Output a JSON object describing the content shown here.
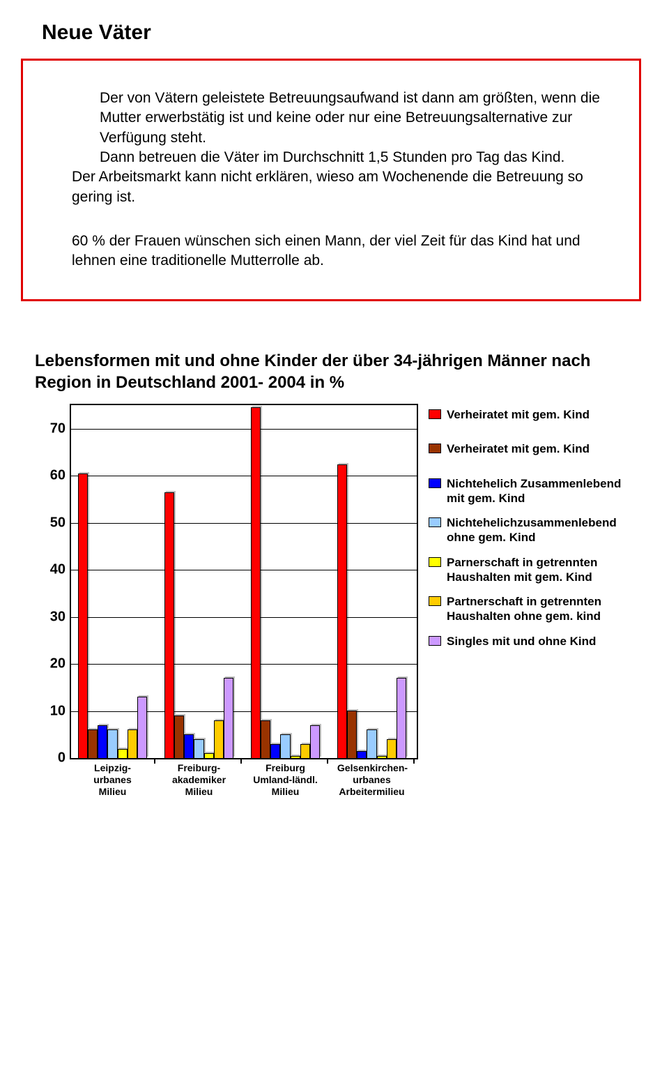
{
  "title": "Neue Väter",
  "paragraphs": [
    "Der von Vätern geleistete Betreuungsaufwand ist dann am größten, wenn die Mutter erwerbstätig ist und keine oder nur eine Betreuungsalternative zur Verfügung steht.\nDann betreuen die Väter im Durchschnitt 1,5 Stunden pro Tag das Kind.",
    "Der Arbeitsmarkt kann nicht erklären, wieso am Wochenende die Betreuung so gering ist.",
    "60 % der Frauen wünschen sich einen Mann, der viel Zeit für das Kind hat und lehnen eine traditionelle Mutterrolle ab."
  ],
  "chart": {
    "title": "Lebensformen mit und ohne Kinder der über 34-jährigen Männer nach Region in Deutschland 2001- 2004 in %",
    "type": "bar",
    "ymin": 0,
    "ymax": 75,
    "yticks": [
      0,
      10,
      20,
      30,
      40,
      50,
      60,
      70
    ],
    "categories": [
      "Leipzig-urbanes\nMilieu",
      "Freiburg-\nakademiker\nMilieu",
      "Freiburg\nUmland-ländl.\nMilieu",
      "Gelsenkirchen-\nurbanes\nArbeitermilieu"
    ],
    "series": [
      {
        "label": "Verheiratet mit gem. Kind",
        "color": "#ff0000"
      },
      {
        "label": "Verheiratet mit gem. Kind",
        "color": "#993300"
      },
      {
        "label": "Nichtehelich Zusammenlebend mit gem. Kind",
        "color": "#0000ff"
      },
      {
        "label": "Nichtehelichzusammenlebend ohne gem. Kind",
        "color": "#99ccff"
      },
      {
        "label": "Parnerschaft in getrennten Haushalten mit gem. Kind",
        "color": "#ffff00"
      },
      {
        "label": "Partnerschaft in getrennten Haushalten ohne gem. kind",
        "color": "#ffcc00"
      },
      {
        "label": "Singles mit und ohne Kind",
        "color": "#cc99ff"
      }
    ],
    "data": [
      [
        60,
        6,
        7,
        6,
        2,
        6,
        13
      ],
      [
        56,
        9,
        5,
        4,
        1,
        8,
        17
      ],
      [
        74,
        8,
        3,
        5,
        0.5,
        3,
        7
      ],
      [
        62,
        10,
        1.5,
        6,
        0.5,
        4,
        17
      ]
    ],
    "group_left_pct": [
      2,
      27,
      52,
      77
    ],
    "group_width_pct": 20,
    "background": "#ffffff",
    "border_color": "#000000"
  }
}
